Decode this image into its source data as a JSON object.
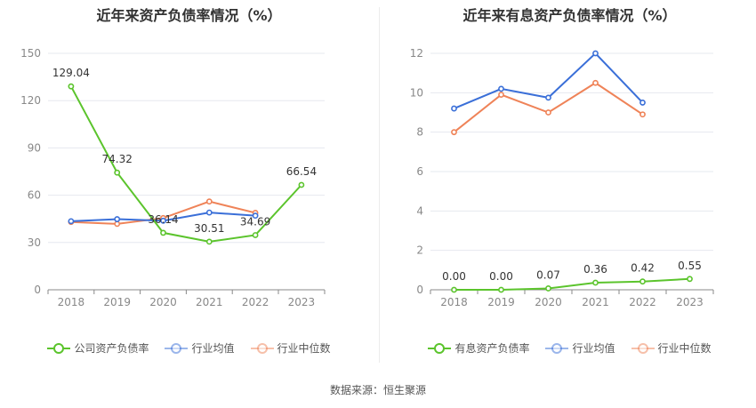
{
  "chart_data": [
    {
      "type": "line",
      "title": "近年来资产负债率情况（%）",
      "categories": [
        "2018",
        "2019",
        "2020",
        "2021",
        "2022",
        "2023"
      ],
      "ylim": [
        0,
        150
      ],
      "yticks": [
        0,
        30,
        60,
        90,
        120,
        150
      ],
      "grid": true,
      "legend_position": "bottom",
      "series": [
        {
          "name": "公司资产负债率",
          "color": "#5bc42c",
          "values": [
            129.04,
            74.32,
            36.14,
            30.51,
            34.69,
            66.54
          ],
          "labels": [
            "129.04",
            "74.32",
            "36.14",
            "30.51",
            "34.69",
            "66.54"
          ]
        },
        {
          "name": "行业均值",
          "color": "#3a6fd8",
          "values": [
            43.5,
            44.8,
            43.8,
            49.0,
            47.0,
            null
          ]
        },
        {
          "name": "行业中位数",
          "color": "#ef8358",
          "values": [
            43.0,
            41.8,
            45.5,
            56.0,
            48.8,
            null
          ]
        }
      ]
    },
    {
      "type": "line",
      "title": "近年来有息资产负债率情况（%）",
      "categories": [
        "2018",
        "2019",
        "2020",
        "2021",
        "2022",
        "2023"
      ],
      "ylim": [
        0,
        12
      ],
      "yticks": [
        0,
        2,
        4,
        6,
        8,
        10,
        12
      ],
      "grid": true,
      "legend_position": "bottom",
      "series": [
        {
          "name": "有息资产负债率",
          "color": "#5bc42c",
          "values": [
            0.0,
            0.0,
            0.07,
            0.36,
            0.42,
            0.55
          ],
          "labels": [
            "0.00",
            "0.00",
            "0.07",
            "0.36",
            "0.42",
            "0.55"
          ]
        },
        {
          "name": "行业均值",
          "color": "#3a6fd8",
          "values": [
            9.2,
            10.2,
            9.75,
            12.0,
            9.5,
            null
          ]
        },
        {
          "name": "行业中位数",
          "color": "#ef8358",
          "values": [
            8.0,
            9.9,
            9.0,
            10.5,
            8.9,
            null
          ]
        }
      ]
    }
  ],
  "footer": {
    "source": "数据来源：恒生聚源"
  }
}
